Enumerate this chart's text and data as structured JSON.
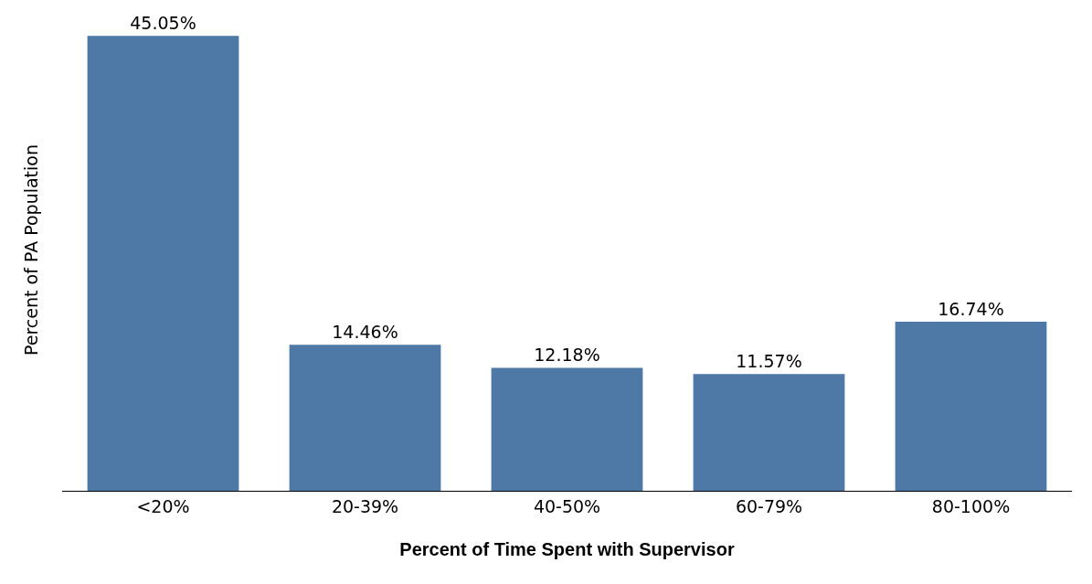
{
  "chart_data": {
    "type": "bar",
    "xlabel": "Percent of Time Spent with Supervisor",
    "ylabel": "Percent of PA Population",
    "categories": [
      "<20%",
      "20-39%",
      "40-50%",
      "60-79%",
      "80-100%"
    ],
    "values": [
      45.05,
      14.46,
      12.18,
      11.57,
      16.74
    ],
    "value_labels": [
      "45.05%",
      "14.46%",
      "12.18%",
      "11.57%",
      "16.74%"
    ],
    "color": "#4e78a6",
    "legend": false
  }
}
